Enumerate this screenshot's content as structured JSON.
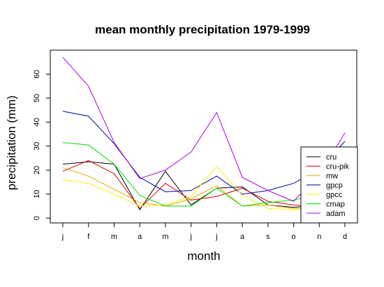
{
  "chart_data": {
    "type": "line",
    "title": "mean monthly precipitation 1979-1999",
    "xlabel": "month",
    "ylabel": "precipitation (mm)",
    "categories": [
      "j",
      "f",
      "m",
      "a",
      "m",
      "j",
      "j",
      "a",
      "s",
      "o",
      "n",
      "d"
    ],
    "yticks": [
      0,
      10,
      20,
      30,
      40,
      50,
      60
    ],
    "ylim": [
      -2,
      70
    ],
    "grid": false,
    "legend_position": "bottom-right",
    "series": [
      {
        "name": "cru",
        "color": "#000000",
        "values": [
          22.5,
          23.5,
          22.5,
          3.5,
          19.5,
          5.5,
          12.5,
          13.0,
          5.5,
          4.5,
          5.5,
          6.0
        ]
      },
      {
        "name": "cru-pik",
        "color": "#dd0000",
        "values": [
          19.5,
          24.0,
          18.5,
          4.0,
          14.5,
          7.5,
          9.0,
          12.5,
          7.0,
          5.5,
          5.0,
          5.5
        ]
      },
      {
        "name": "mw",
        "color": "#ddaa00",
        "values": [
          21.0,
          17.5,
          12.0,
          6.5,
          5.0,
          8.0,
          13.5,
          5.0,
          5.5,
          4.0,
          4.5,
          5.0
        ]
      },
      {
        "name": "gpcp",
        "color": "#0000aa",
        "values": [
          44.5,
          42.5,
          31.0,
          17.0,
          11.0,
          11.5,
          17.5,
          10.0,
          11.5,
          14.5,
          20.5,
          32.0
        ]
      },
      {
        "name": "gpcc",
        "color": "#ffee00",
        "values": [
          16.0,
          14.5,
          10.0,
          5.0,
          5.5,
          9.0,
          21.5,
          9.5,
          4.0,
          3.5,
          4.5,
          5.0
        ]
      },
      {
        "name": "cmap",
        "color": "#00dd00",
        "values": [
          31.5,
          30.5,
          22.5,
          9.5,
          5.0,
          5.0,
          12.5,
          5.0,
          6.5,
          7.5,
          10.0,
          12.0
        ]
      },
      {
        "name": "adam",
        "color": "#aa00dd",
        "values": [
          67.0,
          55.0,
          31.5,
          16.5,
          20.0,
          27.5,
          44.0,
          17.0,
          11.5,
          7.0,
          18.0,
          35.5
        ]
      }
    ]
  }
}
